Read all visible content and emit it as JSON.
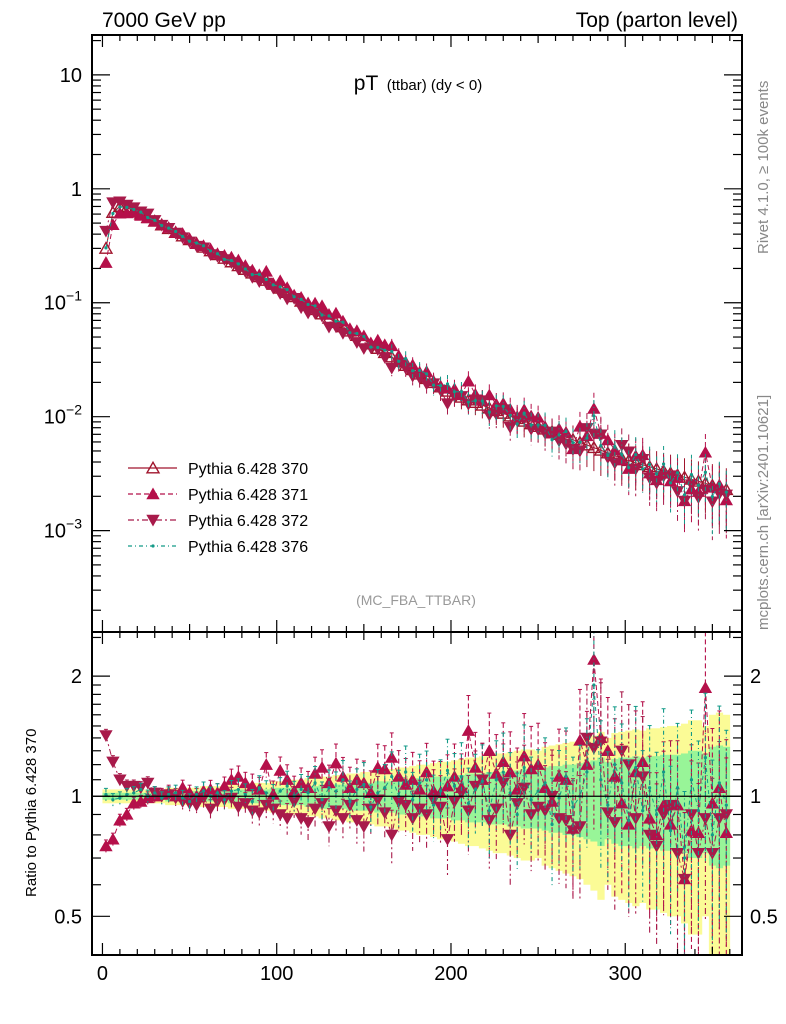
{
  "chart_data": {
    "type": "line",
    "header_left": "7000 GeV pp",
    "header_right": "Top (parton level)",
    "title_main": "pT",
    "title_sub": "(ttbar) (dy < 0)",
    "analysis_label": "(MC_FBA_TTBAR)",
    "side_label_top": "Rivet 4.1.0, ≥ 100k events",
    "side_label_bottom": "mcplots.cern.ch [arXiv:2401.10621]",
    "ratio_ylabel": "Ratio to Pythia 6.428 370",
    "xlim": [
      -6,
      367
    ],
    "ylim_log10": [
      -3.89,
      1.35
    ],
    "ratio_ylim": [
      0.4,
      2.58
    ],
    "xticks": [
      {
        "v": 0,
        "label": "0"
      },
      {
        "v": 100,
        "label": "100"
      },
      {
        "v": 200,
        "label": "200"
      },
      {
        "v": 300,
        "label": "300"
      }
    ],
    "yticks": [
      {
        "v": 1,
        "base": "10",
        "exp": ""
      },
      {
        "v": 0,
        "base": "1",
        "exp": ""
      },
      {
        "v": -1,
        "base": "10",
        "exp": "−1"
      },
      {
        "v": -2,
        "base": "10",
        "exp": "−2"
      },
      {
        "v": -3,
        "base": "10",
        "exp": "−3"
      }
    ],
    "ratio_yticks": [
      {
        "v": 2,
        "label": "2"
      },
      {
        "v": 1,
        "label": "1"
      },
      {
        "v": 0.5,
        "label": "0.5"
      }
    ],
    "bin_width": 4,
    "x": [
      2,
      6,
      10,
      14,
      18,
      22,
      26,
      30,
      34,
      38,
      42,
      46,
      50,
      54,
      58,
      62,
      66,
      70,
      74,
      78,
      82,
      86,
      90,
      94,
      98,
      102,
      106,
      110,
      114,
      118,
      122,
      126,
      130,
      134,
      138,
      142,
      146,
      150,
      154,
      158,
      162,
      166,
      170,
      174,
      178,
      182,
      186,
      190,
      194,
      198,
      202,
      206,
      210,
      214,
      218,
      222,
      226,
      230,
      234,
      238,
      242,
      246,
      250,
      254,
      258,
      262,
      266,
      270,
      274,
      278,
      282,
      286,
      290,
      294,
      298,
      302,
      306,
      310,
      314,
      318,
      322,
      326,
      330,
      334,
      338,
      342,
      346,
      350,
      354,
      358
    ],
    "reference_values": [
      0.3,
      0.62,
      0.7,
      0.68,
      0.645,
      0.6,
      0.559,
      0.519,
      0.481,
      0.447,
      0.414,
      0.385,
      0.357,
      0.331,
      0.307,
      0.285,
      0.264,
      0.245,
      0.228,
      0.211,
      0.196,
      0.182,
      0.169,
      0.157,
      0.145,
      0.134,
      0.123,
      0.113,
      0.103,
      0.0947,
      0.0869,
      0.0796,
      0.073,
      0.0669,
      0.0614,
      0.0563,
      0.0516,
      0.0473,
      0.0434,
      0.0397,
      0.0365,
      0.0334,
      0.0306,
      0.0281,
      0.0258,
      0.0236,
      0.0216,
      0.0199,
      0.0182,
      0.0167,
      0.0156,
      0.0148,
      0.014,
      0.0133,
      0.0126,
      0.0119,
      0.0113,
      0.0107,
      0.0101,
      0.00962,
      0.00912,
      0.00865,
      0.0082,
      0.00777,
      0.00737,
      0.00698,
      0.00662,
      0.00628,
      0.00595,
      0.00564,
      0.00535,
      0.00507,
      0.0048,
      0.00455,
      0.00432,
      0.00411,
      0.00394,
      0.00378,
      0.00363,
      0.00348,
      0.00334,
      0.0032,
      0.00307,
      0.00294,
      0.00282,
      0.00271,
      0.0026,
      0.00249,
      0.00239,
      0.00229
    ],
    "series": [
      {
        "name": "Pythia 6.428 370",
        "color": "#a0152d",
        "marker": "open-up",
        "dash": "",
        "ratio": [
          1,
          1,
          1,
          1,
          1,
          1,
          1,
          1,
          1,
          1,
          1,
          1,
          1,
          1,
          1,
          1,
          1,
          1,
          1,
          1,
          1,
          1,
          1,
          1,
          1,
          1,
          1,
          1,
          1,
          1,
          1,
          1,
          1,
          1,
          1,
          1,
          1,
          1,
          1,
          1,
          1,
          1,
          1,
          1,
          1,
          1,
          1,
          1,
          1,
          1,
          1,
          1,
          1,
          1,
          1,
          1,
          1,
          1,
          1,
          1,
          1,
          1,
          1,
          1,
          1,
          1,
          1,
          1,
          1,
          1,
          1,
          1,
          1,
          1,
          1,
          1,
          1,
          1,
          1,
          1,
          1,
          1,
          1,
          1,
          1,
          1,
          1,
          1,
          1,
          1
        ]
      },
      {
        "name": "Pythia 6.428 371",
        "color": "#b5104a",
        "marker": "filled-up",
        "dash": "5,3",
        "ratio": [
          0.75,
          0.78,
          0.87,
          0.9,
          0.96,
          0.97,
          0.99,
          1.0,
          1.01,
          1.02,
          1.0,
          1.05,
          1.02,
          1.0,
          1.03,
          1.04,
          1.02,
          1.06,
          1.1,
          1.12,
          1.08,
          1.06,
          1.04,
          1.2,
          1.01,
          1.16,
          1.1,
          1.03,
          1.08,
          1.05,
          1.14,
          1.18,
          1.08,
          1.21,
          1.12,
          1.05,
          1.1,
          1.08,
          1.02,
          1.18,
          1.17,
          1.25,
          1.12,
          1.07,
          1.1,
          1.04,
          1.15,
          1.03,
          1.02,
          1.06,
          1.12,
          1.05,
          1.46,
          1.18,
          1.1,
          1.3,
          1.14,
          1.22,
          1.15,
          1.04,
          1.26,
          1.17,
          1.2,
          1.05,
          0.97,
          1.12,
          1.1,
          0.83,
          1.38,
          1.2,
          2.2,
          1.4,
          1.3,
          1.12,
          0.96,
          0.85,
          1.15,
          1.22,
          0.88,
          0.8,
          0.95,
          0.85,
          0.95,
          0.62,
          0.82,
          0.81,
          1.87,
          0.96,
          1.05,
          0.81
        ]
      },
      {
        "name": "Pythia 6.428 372",
        "color": "#a81a4a",
        "marker": "filled-down",
        "dash": "6,3,2,3",
        "ratio": [
          1.42,
          1.22,
          1.1,
          1.06,
          1.06,
          1.05,
          1.08,
          1.02,
          1.0,
          1.01,
          0.99,
          0.97,
          0.96,
          0.95,
          0.99,
          0.93,
          0.97,
          0.98,
          0.99,
          0.94,
          0.96,
          0.92,
          0.91,
          0.95,
          0.93,
          0.9,
          0.88,
          0.97,
          0.88,
          0.86,
          0.93,
          0.96,
          0.84,
          0.92,
          0.88,
          0.95,
          0.87,
          0.84,
          0.93,
          0.98,
          0.91,
          0.8,
          0.97,
          0.95,
          0.88,
          0.93,
          0.9,
          0.98,
          0.94,
          0.78,
          0.97,
          1.02,
          0.92,
          1.06,
          1.1,
          0.87,
          0.93,
          1.08,
          0.8,
          0.96,
          1.05,
          0.9,
          0.94,
          0.92,
          1.0,
          0.88,
          0.87,
          0.82,
          0.84,
          1.4,
          1.32,
          1.37,
          0.91,
          0.86,
          1.3,
          1.2,
          0.88,
          1.12,
          0.8,
          0.75,
          0.9,
          0.95,
          0.72,
          0.62,
          0.9,
          0.72,
          0.88,
          0.72,
          0.88,
          0.9
        ]
      },
      {
        "name": "Pythia 6.428 376",
        "color": "#139a88",
        "marker": "dot",
        "dash": "4,3,1,3",
        "ratio": [
          1.01,
          0.98,
          0.99,
          1.01,
          1.02,
          1.04,
          1.0,
          1.02,
          0.99,
          1.01,
          1.02,
          0.99,
          0.97,
          1.01,
          1.03,
          1.0,
          1.02,
          0.98,
          1.03,
          1.04,
          1.01,
          0.97,
          1.05,
          1.02,
          0.99,
          1.03,
          1.06,
          1.0,
          1.04,
          1.02,
          1.08,
          0.98,
          1.05,
          1.03,
          1.1,
          0.97,
          1.04,
          1.07,
          0.94,
          1.02,
          1.05,
          1.12,
          1.0,
          1.15,
          0.98,
          1.08,
          1.1,
          0.95,
          1.03,
          1.16,
          1.06,
          1.12,
          0.96,
          1.04,
          1.09,
          0.92,
          1.1,
          1.15,
          1.02,
          0.9,
          1.18,
          0.98,
          1.03,
          1.08,
          0.85,
          0.99,
          1.12,
          0.94,
          1.0,
          1.15,
          1.9,
          1.1,
          0.95,
          1.2,
          1.08,
          0.87,
          1.18,
          0.92,
          1.05,
          0.9,
          1.15,
          0.82,
          1.05,
          0.7,
          1.1,
          0.92,
          1.25,
          0.8,
          1.08,
          0.95
        ]
      }
    ],
    "band_yellow": [
      0.04,
      0.04,
      0.04,
      0.04,
      0.04,
      0.04,
      0.04,
      0.04,
      0.04,
      0.05,
      0.05,
      0.05,
      0.05,
      0.05,
      0.06,
      0.06,
      0.06,
      0.06,
      0.07,
      0.07,
      0.07,
      0.08,
      0.08,
      0.08,
      0.09,
      0.09,
      0.1,
      0.1,
      0.1,
      0.11,
      0.11,
      0.12,
      0.12,
      0.13,
      0.13,
      0.14,
      0.14,
      0.15,
      0.15,
      0.16,
      0.16,
      0.17,
      0.18,
      0.18,
      0.19,
      0.2,
      0.2,
      0.21,
      0.22,
      0.22,
      0.23,
      0.24,
      0.25,
      0.25,
      0.26,
      0.27,
      0.28,
      0.28,
      0.29,
      0.3,
      0.31,
      0.31,
      0.3,
      0.33,
      0.34,
      0.35,
      0.36,
      0.37,
      0.38,
      0.4,
      0.42,
      0.45,
      0.4,
      0.44,
      0.45,
      0.46,
      0.47,
      0.46,
      0.48,
      0.48,
      0.49,
      0.5,
      0.5,
      0.52,
      0.55,
      0.55,
      0.5,
      0.6,
      0.62,
      0.6
    ],
    "band_green": [
      0.02,
      0.02,
      0.02,
      0.02,
      0.02,
      0.02,
      0.02,
      0.02,
      0.02,
      0.03,
      0.03,
      0.03,
      0.03,
      0.03,
      0.03,
      0.03,
      0.03,
      0.03,
      0.04,
      0.04,
      0.04,
      0.04,
      0.04,
      0.04,
      0.05,
      0.05,
      0.05,
      0.05,
      0.05,
      0.06,
      0.06,
      0.07,
      0.07,
      0.07,
      0.07,
      0.08,
      0.08,
      0.08,
      0.08,
      0.09,
      0.09,
      0.09,
      0.1,
      0.1,
      0.1,
      0.11,
      0.11,
      0.12,
      0.12,
      0.12,
      0.13,
      0.13,
      0.14,
      0.14,
      0.14,
      0.15,
      0.15,
      0.15,
      0.16,
      0.16,
      0.17,
      0.17,
      0.17,
      0.18,
      0.19,
      0.19,
      0.2,
      0.2,
      0.21,
      0.22,
      0.23,
      0.25,
      0.22,
      0.24,
      0.25,
      0.25,
      0.26,
      0.25,
      0.26,
      0.26,
      0.27,
      0.27,
      0.27,
      0.28,
      0.3,
      0.3,
      0.28,
      0.33,
      0.34,
      0.33
    ],
    "band_colors": {
      "yellow": "#fbfb96",
      "green": "#98f598"
    },
    "grid": false,
    "legend_position": "lower-left"
  }
}
